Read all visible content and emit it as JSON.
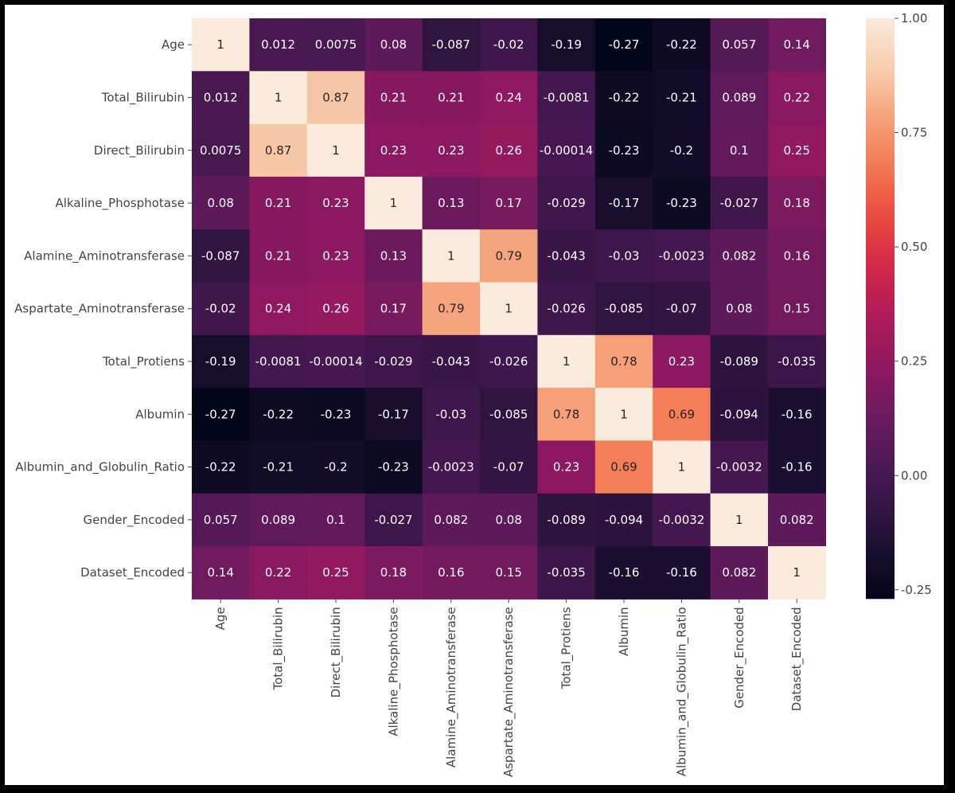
{
  "chart_data": {
    "type": "heatmap",
    "title": "",
    "xlabel": "",
    "ylabel": "",
    "labels": [
      "Age",
      "Total_Bilirubin",
      "Direct_Bilirubin",
      "Alkaline_Phosphotase",
      "Alamine_Aminotransferase",
      "Aspartate_Aminotransferase",
      "Total_Protiens",
      "Albumin",
      "Albumin_and_Globulin_Ratio",
      "Gender_Encoded",
      "Dataset_Encoded"
    ],
    "matrix": [
      [
        "1",
        "0.012",
        "0.0075",
        "0.08",
        "-0.087",
        "-0.02",
        "-0.19",
        "-0.27",
        "-0.22",
        "0.057",
        "0.14"
      ],
      [
        "0.012",
        "1",
        "0.87",
        "0.21",
        "0.21",
        "0.24",
        "-0.0081",
        "-0.22",
        "-0.21",
        "0.089",
        "0.22"
      ],
      [
        "0.0075",
        "0.87",
        "1",
        "0.23",
        "0.23",
        "0.26",
        "-0.00014",
        "-0.23",
        "-0.2",
        "0.1",
        "0.25"
      ],
      [
        "0.08",
        "0.21",
        "0.23",
        "1",
        "0.13",
        "0.17",
        "-0.029",
        "-0.17",
        "-0.23",
        "-0.027",
        "0.18"
      ],
      [
        "-0.087",
        "0.21",
        "0.23",
        "0.13",
        "1",
        "0.79",
        "-0.043",
        "-0.03",
        "-0.0023",
        "0.082",
        "0.16"
      ],
      [
        "-0.02",
        "0.24",
        "0.26",
        "0.17",
        "0.79",
        "1",
        "-0.026",
        "-0.085",
        "-0.07",
        "0.08",
        "0.15"
      ],
      [
        "-0.19",
        "-0.0081",
        "-0.00014",
        "-0.029",
        "-0.043",
        "-0.026",
        "1",
        "0.78",
        "0.23",
        "-0.089",
        "-0.035"
      ],
      [
        "-0.27",
        "-0.22",
        "-0.23",
        "-0.17",
        "-0.03",
        "-0.085",
        "0.78",
        "1",
        "0.69",
        "-0.094",
        "-0.16"
      ],
      [
        "-0.22",
        "-0.21",
        "-0.2",
        "-0.23",
        "-0.0023",
        "-0.07",
        "0.23",
        "0.69",
        "1",
        "-0.0032",
        "-0.16"
      ],
      [
        "0.057",
        "0.089",
        "0.1",
        "-0.027",
        "0.082",
        "0.08",
        "-0.089",
        "-0.094",
        "-0.0032",
        "1",
        "0.082"
      ],
      [
        "0.14",
        "0.22",
        "0.25",
        "0.18",
        "0.16",
        "0.15",
        "-0.035",
        "-0.16",
        "-0.16",
        "0.082",
        "1"
      ]
    ],
    "colorbar": {
      "min": -0.27,
      "max": 1.0,
      "ticks": [
        "-0.25",
        "0.00",
        "0.25",
        "0.50",
        "0.75",
        "1.00"
      ],
      "colormap": "rocket"
    }
  }
}
